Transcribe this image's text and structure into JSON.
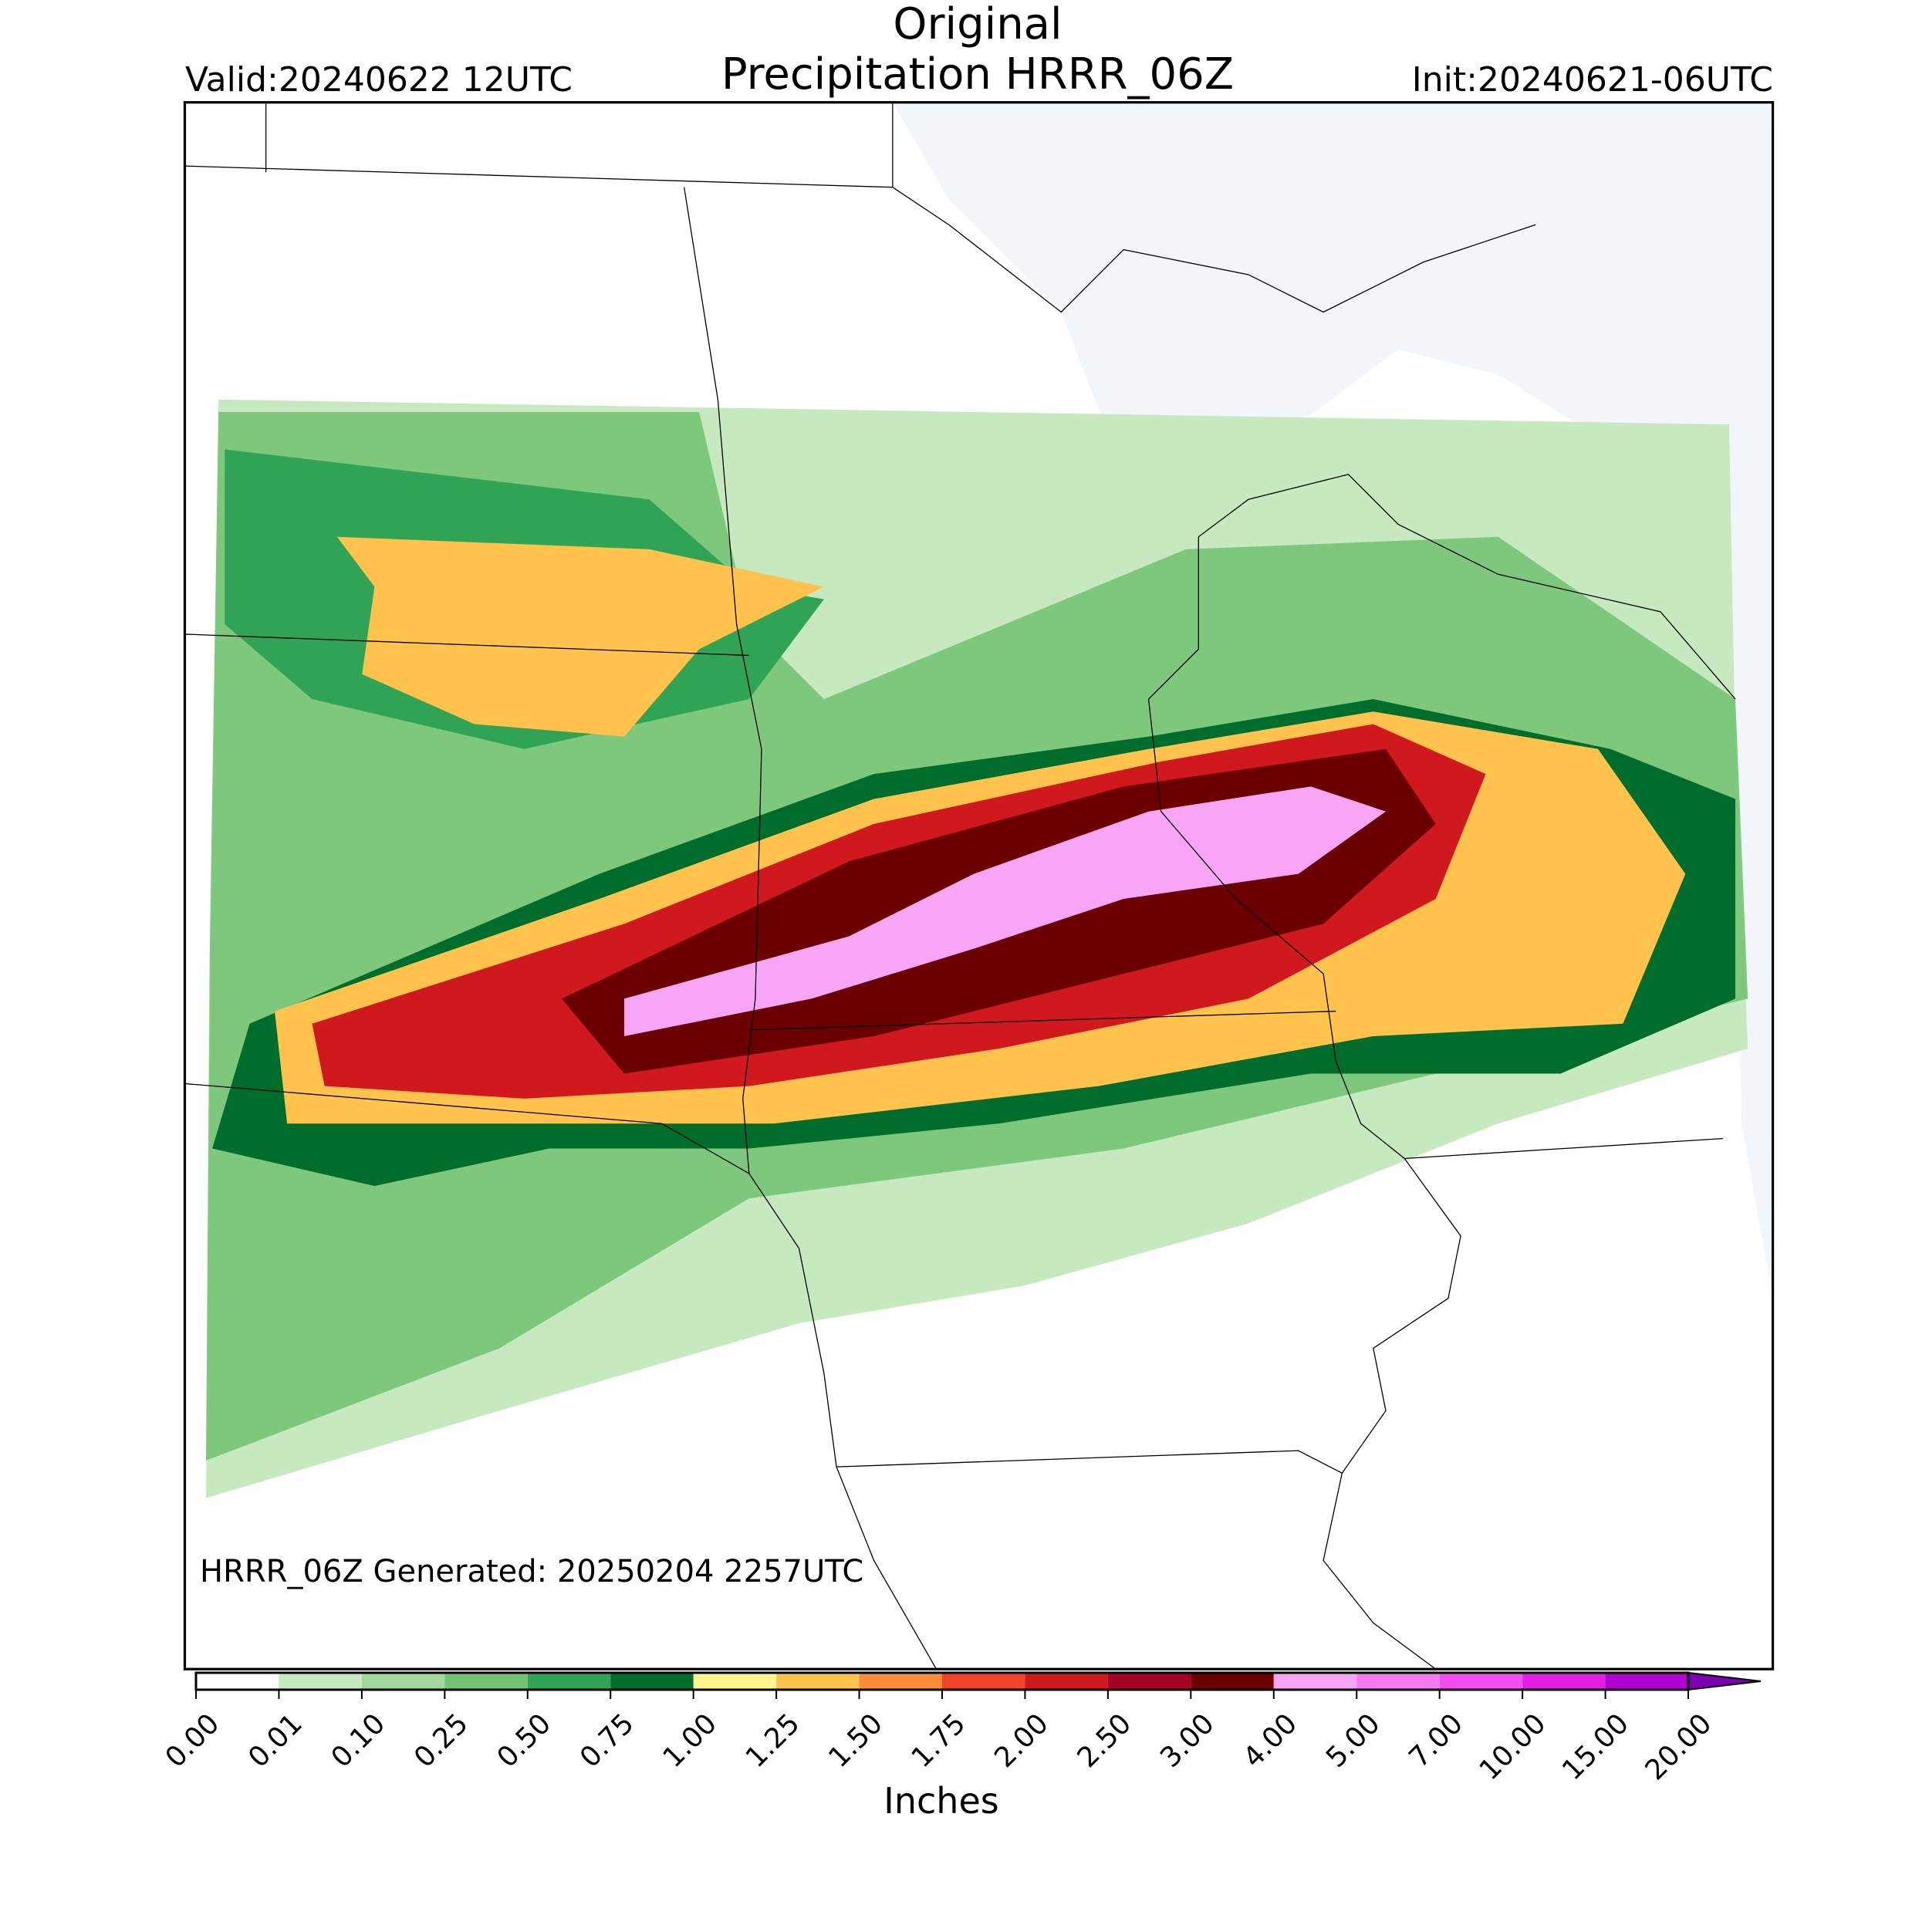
{
  "header": {
    "title": "Original",
    "subtitle": "Precipitation HRRR_06Z",
    "valid": "Valid:20240622 12UTC",
    "init": "Init:20240621-06UTC"
  },
  "footer": {
    "generated": "HRRR_06Z Generated: 20250204 2257UTC"
  },
  "colorbar": {
    "label": "Inches",
    "ticks": [
      {
        "value": 0,
        "label": "0.00"
      },
      {
        "value": 0.01,
        "label": "0.01"
      },
      {
        "value": 0.1,
        "label": "0.10"
      },
      {
        "value": 0.25,
        "label": "0.25"
      },
      {
        "value": 0.5,
        "label": "0.50"
      },
      {
        "value": 0.75,
        "label": "0.75"
      },
      {
        "value": 1,
        "label": "1.00"
      },
      {
        "value": 1.25,
        "label": "1.25"
      },
      {
        "value": 1.5,
        "label": "1.50"
      },
      {
        "value": 1.75,
        "label": "1.75"
      },
      {
        "value": 2,
        "label": "2.00"
      },
      {
        "value": 2.5,
        "label": "2.50"
      },
      {
        "value": 3,
        "label": "3.00"
      },
      {
        "value": 4,
        "label": "4.00"
      },
      {
        "value": 5,
        "label": "5.00"
      },
      {
        "value": 7,
        "label": "7.00"
      },
      {
        "value": 10,
        "label": "10.00"
      },
      {
        "value": 15,
        "label": "15.00"
      },
      {
        "value": 20,
        "label": "20.00"
      }
    ],
    "colors": [
      "#ffffff",
      "#c7e9c0",
      "#a1d99b",
      "#74c476",
      "#31a354",
      "#006d2c",
      "#fff68f",
      "#ffc34d",
      "#ff8c3a",
      "#f0452a",
      "#d0191e",
      "#a50026",
      "#6a0000",
      "#f8a5f5",
      "#f47cf0",
      "#f24df0",
      "#e31ee5",
      "#b000d0",
      "#7a00b0"
    ]
  }
}
